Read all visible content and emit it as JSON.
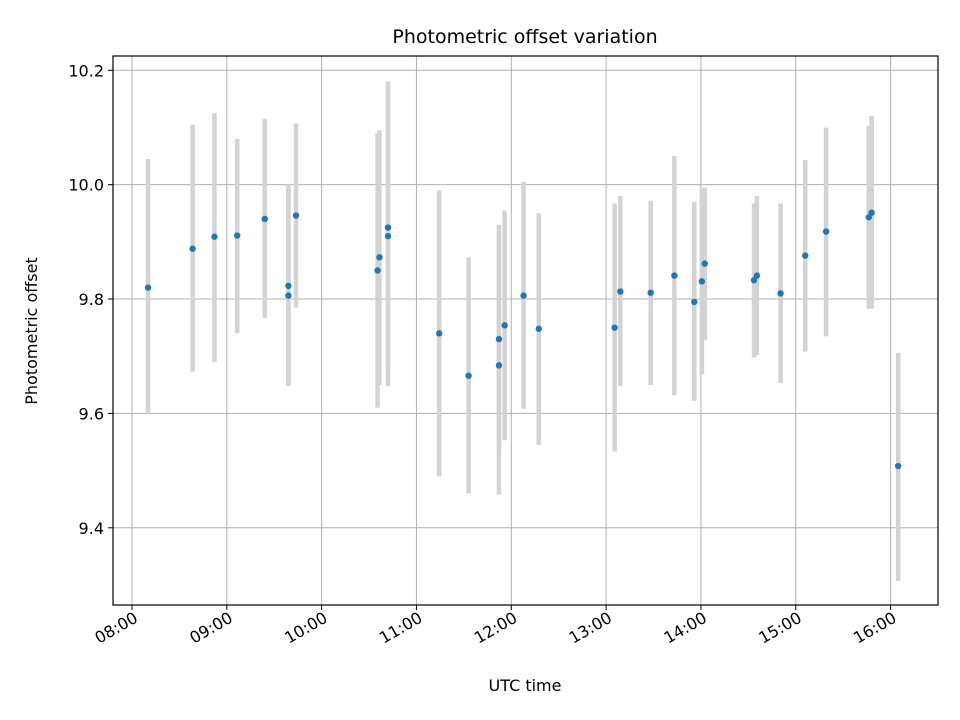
{
  "chart_data": {
    "type": "scatter",
    "title": "Photometric offset variation",
    "xlabel": "UTC time",
    "ylabel": "Photometric offset",
    "xlim": [
      7.8,
      16.5
    ],
    "ylim": [
      9.265,
      10.225
    ],
    "grid": true,
    "x_ticks": [
      {
        "value": 8,
        "label": "08:00"
      },
      {
        "value": 9,
        "label": "09:00"
      },
      {
        "value": 10,
        "label": "10:00"
      },
      {
        "value": 11,
        "label": "11:00"
      },
      {
        "value": 12,
        "label": "12:00"
      },
      {
        "value": 13,
        "label": "13:00"
      },
      {
        "value": 14,
        "label": "14:00"
      },
      {
        "value": 15,
        "label": "15:00"
      },
      {
        "value": 16,
        "label": "16:00"
      }
    ],
    "y_ticks": [
      {
        "value": 9.4,
        "label": "9.4"
      },
      {
        "value": 9.6,
        "label": "9.6"
      },
      {
        "value": 9.8,
        "label": "9.8"
      },
      {
        "value": 10.0,
        "label": "10.0"
      },
      {
        "value": 10.2,
        "label": "10.2"
      }
    ],
    "colors": {
      "point": "#1f77b4",
      "errorbar": "#d3d3d3",
      "grid": "#b0b0b0"
    },
    "points": [
      {
        "time": "08:10",
        "x": 8.17,
        "y": 9.82,
        "ylow": 9.6,
        "yhigh": 10.045
      },
      {
        "time": "08:38",
        "x": 8.64,
        "y": 9.888,
        "ylow": 9.673,
        "yhigh": 10.105
      },
      {
        "time": "08:52",
        "x": 8.87,
        "y": 9.909,
        "ylow": 9.69,
        "yhigh": 10.125
      },
      {
        "time": "09:07",
        "x": 9.11,
        "y": 9.911,
        "ylow": 9.74,
        "yhigh": 10.08
      },
      {
        "time": "09:24",
        "x": 9.4,
        "y": 9.94,
        "ylow": 9.767,
        "yhigh": 10.115
      },
      {
        "time": "09:39",
        "x": 9.65,
        "y": 9.823,
        "ylow": 9.648,
        "yhigh": 10.0
      },
      {
        "time": "09:39",
        "x": 9.65,
        "y": 9.806,
        "ylow": 9.648,
        "yhigh": 10.0
      },
      {
        "time": "09:44",
        "x": 9.73,
        "y": 9.946,
        "ylow": 9.785,
        "yhigh": 10.107
      },
      {
        "time": "10:35",
        "x": 10.59,
        "y": 9.85,
        "ylow": 9.61,
        "yhigh": 10.09
      },
      {
        "time": "10:37",
        "x": 10.61,
        "y": 9.873,
        "ylow": 9.65,
        "yhigh": 10.095
      },
      {
        "time": "10:42",
        "x": 10.7,
        "y": 9.925,
        "ylow": 9.67,
        "yhigh": 10.18
      },
      {
        "time": "10:42",
        "x": 10.7,
        "y": 9.91,
        "ylow": 9.648,
        "yhigh": 10.18
      },
      {
        "time": "11:14",
        "x": 11.24,
        "y": 9.74,
        "ylow": 9.49,
        "yhigh": 9.99
      },
      {
        "time": "11:33",
        "x": 11.55,
        "y": 9.666,
        "ylow": 9.46,
        "yhigh": 9.873
      },
      {
        "time": "11:52",
        "x": 11.87,
        "y": 9.73,
        "ylow": 9.535,
        "yhigh": 9.93
      },
      {
        "time": "11:52",
        "x": 11.87,
        "y": 9.684,
        "ylow": 9.458,
        "yhigh": 9.91
      },
      {
        "time": "11:56",
        "x": 11.93,
        "y": 9.754,
        "ylow": 9.553,
        "yhigh": 9.955
      },
      {
        "time": "12:08",
        "x": 12.13,
        "y": 9.806,
        "ylow": 9.608,
        "yhigh": 10.005
      },
      {
        "time": "12:17",
        "x": 12.29,
        "y": 9.748,
        "ylow": 9.545,
        "yhigh": 9.95
      },
      {
        "time": "13:05",
        "x": 13.09,
        "y": 9.75,
        "ylow": 9.533,
        "yhigh": 9.967
      },
      {
        "time": "13:09",
        "x": 13.15,
        "y": 9.813,
        "ylow": 9.648,
        "yhigh": 9.98
      },
      {
        "time": "13:28",
        "x": 13.47,
        "y": 9.811,
        "ylow": 9.65,
        "yhigh": 9.972
      },
      {
        "time": "13:43",
        "x": 13.72,
        "y": 9.841,
        "ylow": 9.632,
        "yhigh": 10.05
      },
      {
        "time": "13:55",
        "x": 13.93,
        "y": 9.795,
        "ylow": 9.622,
        "yhigh": 9.97
      },
      {
        "time": "14:01",
        "x": 14.01,
        "y": 9.831,
        "ylow": 9.668,
        "yhigh": 9.995
      },
      {
        "time": "14:02",
        "x": 14.04,
        "y": 9.862,
        "ylow": 9.728,
        "yhigh": 9.995
      },
      {
        "time": "14:34",
        "x": 14.56,
        "y": 9.833,
        "ylow": 9.698,
        "yhigh": 9.967
      },
      {
        "time": "14:35",
        "x": 14.59,
        "y": 9.841,
        "ylow": 9.702,
        "yhigh": 9.98
      },
      {
        "time": "14:50",
        "x": 14.84,
        "y": 9.81,
        "ylow": 9.653,
        "yhigh": 9.967
      },
      {
        "time": "15:06",
        "x": 15.1,
        "y": 9.876,
        "ylow": 9.708,
        "yhigh": 10.043
      },
      {
        "time": "15:19",
        "x": 15.32,
        "y": 9.918,
        "ylow": 9.735,
        "yhigh": 10.1
      },
      {
        "time": "15:46",
        "x": 15.77,
        "y": 9.943,
        "ylow": 9.783,
        "yhigh": 10.103
      },
      {
        "time": "15:48",
        "x": 15.8,
        "y": 9.951,
        "ylow": 9.783,
        "yhigh": 10.12
      },
      {
        "time": "16:05",
        "x": 16.08,
        "y": 9.508,
        "ylow": 9.307,
        "yhigh": 9.706
      }
    ]
  }
}
